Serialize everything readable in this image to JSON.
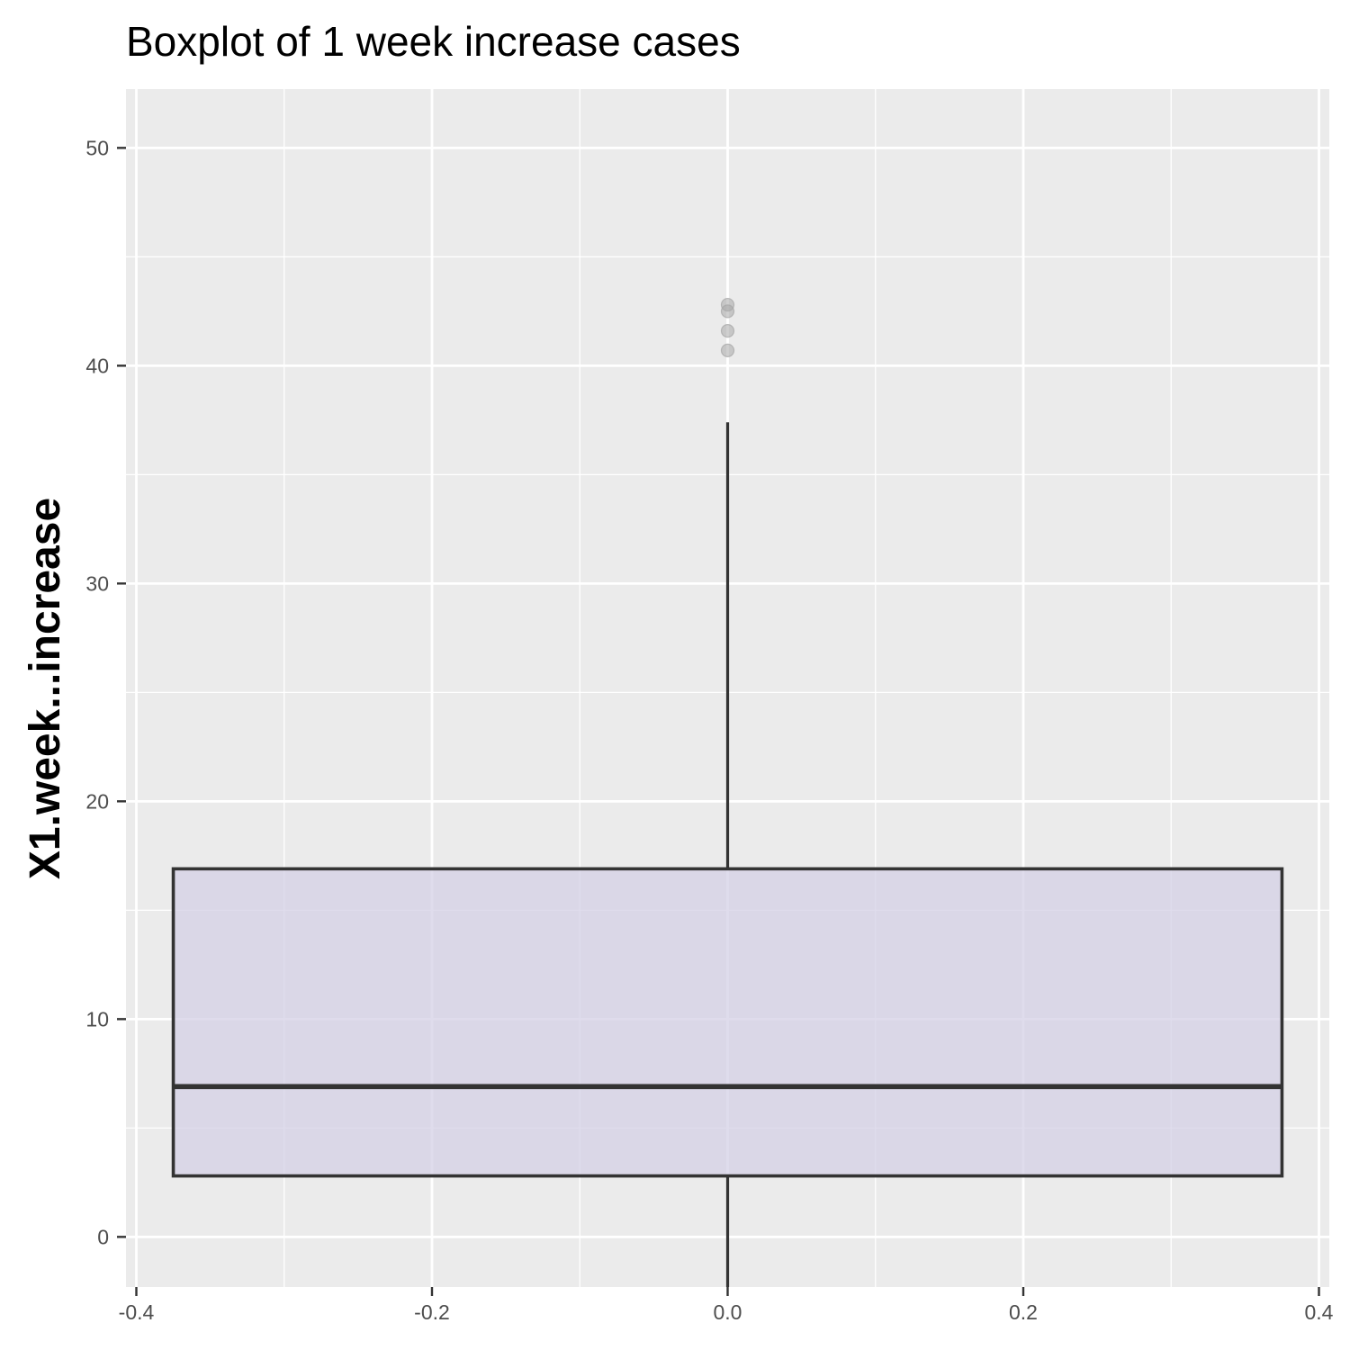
{
  "chart_data": {
    "type": "boxplot",
    "title": "Boxplot of 1 week increase cases",
    "xlabel": "",
    "ylabel": "X1.week...increase",
    "xlim": [
      -0.407,
      0.407
    ],
    "ylim": [
      -2.3,
      52.7
    ],
    "x_ticks": [
      -0.4,
      -0.2,
      0.0,
      0.2,
      0.4
    ],
    "x_tick_labels": [
      "-0.4",
      "-0.2",
      "0.0",
      "0.2",
      "0.4"
    ],
    "y_ticks": [
      0,
      10,
      20,
      30,
      40,
      50
    ],
    "y_tick_labels": [
      "0",
      "10",
      "20",
      "30",
      "40",
      "50"
    ],
    "grid": true,
    "box": {
      "x_center": 0,
      "x_min": -0.375,
      "x_max": 0.375,
      "whisker_low": -3,
      "q1": 2.8,
      "median": 6.9,
      "q3": 16.9,
      "whisker_high": 37.4
    },
    "outliers": [
      40.7,
      41.6,
      42.5,
      42.8
    ],
    "colors": {
      "panel": "#ebebeb",
      "grid": "#ffffff",
      "box_fill": "#d3cfe5",
      "box_stroke": "#333333",
      "outlier": "#a8a8a8"
    }
  }
}
